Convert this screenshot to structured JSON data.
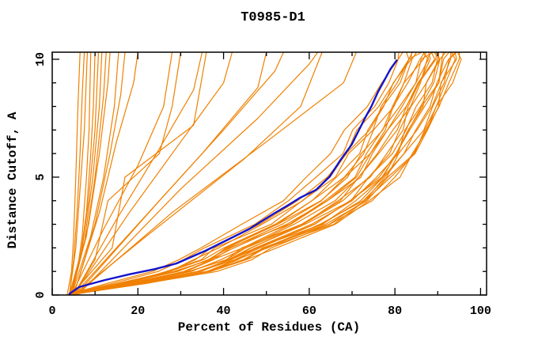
{
  "chart_data": {
    "type": "line",
    "title": "T0985-D1",
    "xlabel": "Percent of Residues (CA)",
    "ylabel": "Distance Cutoff, A",
    "xlim": [
      0,
      101.4
    ],
    "ylim": [
      0,
      10.3
    ],
    "grid": false,
    "legend": "none",
    "frame": "box-with-inward-ticks",
    "colors": {
      "models": "#f08000",
      "highlight": "#1414cc",
      "frame": "#000000",
      "background": "#ffffff"
    },
    "x_ticks": {
      "major": [
        0,
        20,
        40,
        60,
        80,
        100
      ],
      "minor": [
        10,
        30,
        50,
        70,
        90
      ],
      "labels": [
        "0",
        "20",
        "40",
        "60",
        "80",
        "100"
      ]
    },
    "y_ticks": {
      "major": [
        0,
        5,
        10
      ],
      "minor": [
        1,
        2,
        3,
        4,
        6,
        7,
        8,
        9
      ],
      "labels": [
        "0",
        "5",
        "10"
      ]
    },
    "highlight_series": {
      "name": "highlighted-model",
      "color_key": "highlight",
      "points": [
        [
          4,
          0.05
        ],
        [
          6.3,
          0.34
        ],
        [
          12,
          0.62
        ],
        [
          18,
          0.88
        ],
        [
          24,
          1.1
        ],
        [
          29,
          1.34
        ],
        [
          35.8,
          1.88
        ],
        [
          41,
          2.35
        ],
        [
          46,
          2.8
        ],
        [
          51.8,
          3.46
        ],
        [
          55,
          3.8
        ],
        [
          57.9,
          4.13
        ],
        [
          61.6,
          4.46
        ],
        [
          64.8,
          5.03
        ],
        [
          67.2,
          5.7
        ],
        [
          69.9,
          6.38
        ],
        [
          73,
          7.5
        ],
        [
          74.5,
          8.0
        ],
        [
          76,
          8.6
        ],
        [
          77.5,
          9.1
        ],
        [
          79,
          9.6
        ],
        [
          80.4,
          9.95
        ]
      ]
    },
    "series": [
      {
        "name": "model-01",
        "points": [
          [
            3.5,
            0
          ],
          [
            4.5,
            1
          ],
          [
            5,
            2.5
          ],
          [
            5.5,
            5
          ],
          [
            6,
            8
          ],
          [
            6.5,
            10.3
          ]
        ]
      },
      {
        "name": "model-02",
        "points": [
          [
            4,
            0
          ],
          [
            5,
            1.5
          ],
          [
            5.8,
            3.5
          ],
          [
            6.5,
            6
          ],
          [
            7,
            8.5
          ],
          [
            7.5,
            10.3
          ]
        ]
      },
      {
        "name": "model-03",
        "points": [
          [
            4,
            0
          ],
          [
            5.5,
            2
          ],
          [
            6.5,
            4.5
          ],
          [
            7.5,
            7
          ],
          [
            8.2,
            10.3
          ]
        ]
      },
      {
        "name": "model-04",
        "points": [
          [
            4,
            0
          ],
          [
            6,
            1.2
          ],
          [
            7,
            2.5
          ],
          [
            8,
            5
          ],
          [
            8.6,
            7
          ],
          [
            9,
            10.3
          ]
        ]
      },
      {
        "name": "model-05",
        "points": [
          [
            4.2,
            0
          ],
          [
            6.5,
            1.5
          ],
          [
            8,
            3.5
          ],
          [
            9,
            6
          ],
          [
            9.6,
            8
          ],
          [
            10,
            10.3
          ]
        ]
      },
      {
        "name": "model-06",
        "points": [
          [
            4,
            0
          ],
          [
            7,
            2
          ],
          [
            8.5,
            4
          ],
          [
            10,
            7
          ],
          [
            10.8,
            10.3
          ]
        ]
      },
      {
        "name": "model-07",
        "points": [
          [
            4.5,
            0
          ],
          [
            7.5,
            2.2
          ],
          [
            9.5,
            5
          ],
          [
            11,
            8
          ],
          [
            11.6,
            10.3
          ]
        ]
      },
      {
        "name": "model-08",
        "points": [
          [
            4.2,
            0
          ],
          [
            8,
            2.5
          ],
          [
            10,
            5
          ],
          [
            12,
            8.5
          ],
          [
            12.6,
            10.3
          ]
        ]
      },
      {
        "name": "model-09",
        "points": [
          [
            4.5,
            0
          ],
          [
            8.5,
            3
          ],
          [
            11,
            6
          ],
          [
            13,
            9
          ],
          [
            13.5,
            10.3
          ]
        ]
      },
      {
        "name": "model-10",
        "points": [
          [
            4.5,
            0
          ],
          [
            9,
            2.5
          ],
          [
            12,
            5
          ],
          [
            14.5,
            8
          ],
          [
            15.5,
            10.3
          ]
        ]
      },
      {
        "name": "model-11",
        "points": [
          [
            5,
            0
          ],
          [
            10,
            3
          ],
          [
            13.5,
            6
          ],
          [
            16,
            8.5
          ],
          [
            17,
            10.3
          ]
        ]
      },
      {
        "name": "model-12",
        "points": [
          [
            5,
            0
          ],
          [
            11,
            3.5
          ],
          [
            15,
            6.5
          ],
          [
            19,
            9
          ],
          [
            20,
            10.3
          ]
        ]
      },
      {
        "name": "model-13",
        "points": [
          [
            4.5,
            0
          ],
          [
            12,
            2.8
          ],
          [
            20,
            5.5
          ],
          [
            26,
            8
          ],
          [
            28,
            10.3
          ]
        ]
      },
      {
        "name": "model-14",
        "points": [
          [
            5,
            0
          ],
          [
            15,
            3.2
          ],
          [
            25,
            6.2
          ],
          [
            33,
            8.7
          ],
          [
            35,
            10.3
          ]
        ]
      },
      {
        "name": "model-15",
        "points": [
          [
            5,
            0
          ],
          [
            18,
            3.5
          ],
          [
            30,
            6.5
          ],
          [
            40,
            9
          ],
          [
            42,
            10.3
          ]
        ]
      },
      {
        "name": "model-16",
        "points": [
          [
            5,
            0
          ],
          [
            20,
            3
          ],
          [
            35,
            6
          ],
          [
            48,
            8.8
          ],
          [
            50,
            10.3
          ]
        ]
      },
      {
        "name": "model-17",
        "points": [
          [
            5.5,
            0
          ],
          [
            25,
            4
          ],
          [
            40,
            7
          ],
          [
            52,
            9.5
          ],
          [
            54,
            10.3
          ]
        ]
      },
      {
        "name": "model-18",
        "points": [
          [
            6,
            0
          ],
          [
            30,
            4.5
          ],
          [
            48,
            7.5
          ],
          [
            60,
            9.8
          ],
          [
            62,
            10.3
          ]
        ]
      },
      {
        "name": "model-19",
        "points": [
          [
            5,
            0
          ],
          [
            22,
            2.5
          ],
          [
            45,
            5.8
          ],
          [
            58,
            8
          ],
          [
            63,
            10.3
          ]
        ]
      },
      {
        "name": "model-20",
        "points": [
          [
            5.5,
            0
          ],
          [
            28,
            3.5
          ],
          [
            50,
            6.5
          ],
          [
            68,
            9
          ],
          [
            71,
            10.3
          ]
        ]
      },
      {
        "name": "model-21",
        "points": [
          [
            5,
            0
          ],
          [
            10,
            1.5
          ],
          [
            13,
            4
          ],
          [
            25,
            6
          ],
          [
            28,
            8
          ],
          [
            30,
            10.3
          ]
        ]
      },
      {
        "name": "model-22",
        "points": [
          [
            4.5,
            0
          ],
          [
            14,
            2
          ],
          [
            17,
            5
          ],
          [
            33,
            7.2
          ],
          [
            36,
            10.3
          ]
        ]
      }
    ],
    "bundle": {
      "name": "model-bundle",
      "count": 28,
      "y_knots": [
        0.05,
        0.5,
        1,
        1.5,
        2,
        3,
        4,
        5,
        6,
        7,
        8,
        9,
        10,
        10.3
      ],
      "x_left": [
        4.5,
        14,
        24,
        30,
        34,
        45,
        54,
        60,
        65,
        69,
        73,
        77,
        80,
        81
      ],
      "x_right": [
        5.5,
        22,
        38,
        46,
        52,
        66,
        75,
        81,
        85,
        88,
        90.5,
        92.5,
        94.5,
        95
      ],
      "spread_exponent": 0.7,
      "jitter": 1.2
    }
  }
}
